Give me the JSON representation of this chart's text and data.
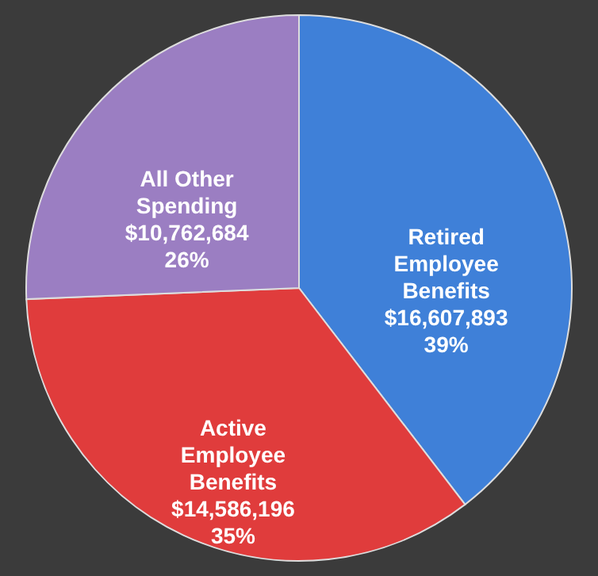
{
  "chart_data": {
    "type": "pie",
    "categories": [
      "Retired Employee Benefits",
      "Active Employee Benefits",
      "All Other Spending"
    ],
    "values": [
      16607893,
      14586196,
      10762684
    ],
    "colors": [
      "#3f80d8",
      "#e03c3c",
      "#9b7ec2"
    ],
    "value_labels": [
      "$16,607,893\n39%",
      "$14,586,196\n35%",
      "$10,762,684\n26%"
    ]
  }
}
